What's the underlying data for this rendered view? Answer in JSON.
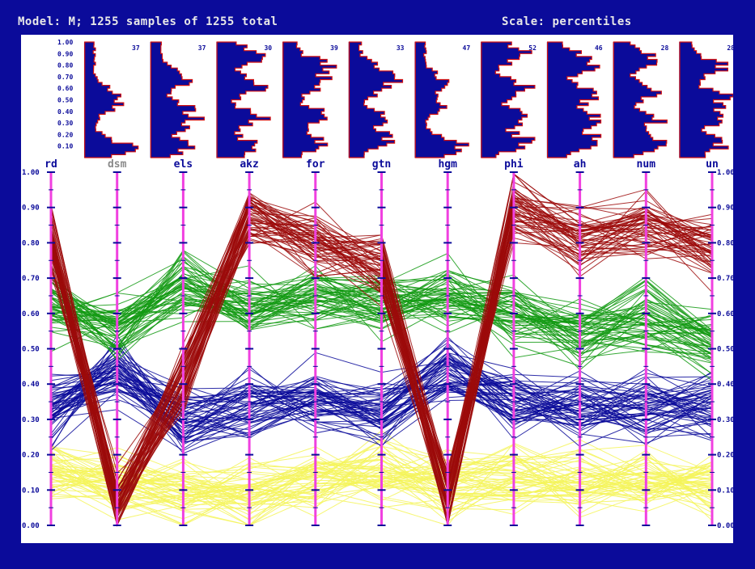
{
  "header": {
    "model_title": "Model: M; 1255 samples of 1255 total",
    "scale_label": "Scale: percentiles"
  },
  "chart_data": {
    "type": "parallel-coordinates",
    "axes": [
      {
        "name": "rd",
        "hist_max": null
      },
      {
        "name": "dsm",
        "hist_max": 37
      },
      {
        "name": "els",
        "hist_max": 37
      },
      {
        "name": "akz",
        "hist_max": 30
      },
      {
        "name": "for",
        "hist_max": 39
      },
      {
        "name": "gtn",
        "hist_max": 33
      },
      {
        "name": "hgm",
        "hist_max": 47
      },
      {
        "name": "phi",
        "hist_max": 52
      },
      {
        "name": "ah",
        "hist_max": 46
      },
      {
        "name": "num",
        "hist_max": 28
      },
      {
        "name": "un",
        "hist_max": 28
      }
    ],
    "y_ticks": [
      "0.00",
      "0.10",
      "0.20",
      "0.30",
      "0.40",
      "0.50",
      "0.60",
      "0.70",
      "0.80",
      "0.90",
      "1.00"
    ],
    "hist_ticks": [
      "0.10",
      "0.20",
      "0.30",
      "0.40",
      "0.50",
      "0.60",
      "0.70",
      "0.80",
      "0.90",
      "1.00"
    ],
    "ylim": [
      0,
      1
    ],
    "clusters": [
      {
        "color": "#f4f45a",
        "range": [
          0.0,
          0.25
        ],
        "profile": [
          0.15,
          0.12,
          0.1,
          0.08,
          0.13,
          0.15,
          0.11,
          0.14,
          0.13,
          0.12,
          0.11
        ]
      },
      {
        "color": "#0b0b9a",
        "range": [
          0.25,
          0.55
        ],
        "profile": [
          0.32,
          0.45,
          0.3,
          0.34,
          0.36,
          0.33,
          0.45,
          0.35,
          0.33,
          0.33,
          0.35
        ]
      },
      {
        "color": "#139a13",
        "range": [
          0.5,
          0.8
        ],
        "profile": [
          0.62,
          0.55,
          0.68,
          0.62,
          0.64,
          0.62,
          0.66,
          0.6,
          0.55,
          0.58,
          0.52
        ]
      },
      {
        "color": "#9c0b0b",
        "range": [
          0.55,
          0.99
        ],
        "profile": [
          0.82,
          0.06,
          0.42,
          0.88,
          0.8,
          0.74,
          0.08,
          0.9,
          0.82,
          0.84,
          0.78
        ]
      }
    ]
  }
}
